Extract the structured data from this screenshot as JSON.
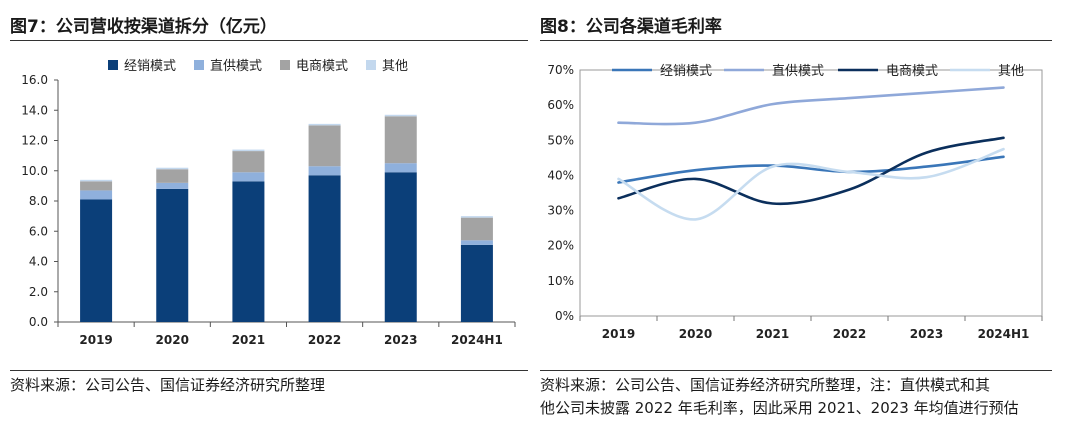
{
  "charts": {
    "left": {
      "title": "图7：公司营收按渠道拆分（亿元）",
      "source": "资料来源：公司公告、国信证券经济研究所整理"
    },
    "right": {
      "title": "图8：公司各渠道毛利率",
      "source_line1": "资料来源：公司公告、国信证券经济研究所整理，注：直供模式和其",
      "source_line2": "他公司未披露 2022 年毛利率，因此采用 2021、2023 年均值进行预估"
    }
  },
  "chart_data": [
    {
      "type": "bar",
      "stacked": true,
      "title": "图7：公司营收按渠道拆分（亿元）",
      "categories": [
        "2019",
        "2020",
        "2021",
        "2022",
        "2023",
        "2024H1"
      ],
      "ylim": [
        0,
        16
      ],
      "yticks": [
        "0.0",
        "2.0",
        "4.0",
        "6.0",
        "8.0",
        "10.0",
        "12.0",
        "14.0",
        "16.0"
      ],
      "legend_position": "top",
      "grid": false,
      "series": [
        {
          "name": "经销模式",
          "color": "#0b3f79",
          "values": [
            8.1,
            8.8,
            9.3,
            9.7,
            9.9,
            5.1
          ]
        },
        {
          "name": "直供模式",
          "color": "#8fb0dc",
          "values": [
            0.6,
            0.4,
            0.6,
            0.6,
            0.6,
            0.3
          ]
        },
        {
          "name": "电商模式",
          "color": "#a3a3a3",
          "values": [
            0.6,
            0.9,
            1.4,
            2.7,
            3.1,
            1.5
          ]
        },
        {
          "name": "其他",
          "color": "#c3d8ee",
          "values": [
            0.1,
            0.1,
            0.1,
            0.1,
            0.1,
            0.1
          ]
        }
      ]
    },
    {
      "type": "line",
      "title": "图8：公司各渠道毛利率",
      "categories": [
        "2019",
        "2020",
        "2021",
        "2022",
        "2023",
        "2024H1"
      ],
      "ylim": [
        0,
        70
      ],
      "yticks": [
        "0%",
        "10%",
        "20%",
        "30%",
        "40%",
        "50%",
        "60%",
        "70%"
      ],
      "legend_position": "top",
      "grid": false,
      "smooth": true,
      "series": [
        {
          "name": "经销模式",
          "color": "#3a76b8",
          "values": [
            38,
            41.5,
            42.8,
            41,
            42.5,
            45.3
          ]
        },
        {
          "name": "直供模式",
          "color": "#8fa8d9",
          "values": [
            55,
            55,
            60.3,
            62,
            63.5,
            65
          ]
        },
        {
          "name": "电商模式",
          "color": "#0b2f5c",
          "values": [
            33.5,
            39,
            32,
            36,
            46.5,
            50.7
          ]
        },
        {
          "name": "其他",
          "color": "#c6dcf0",
          "values": [
            39,
            27.5,
            42.5,
            41,
            39.5,
            47.5
          ]
        }
      ]
    }
  ]
}
